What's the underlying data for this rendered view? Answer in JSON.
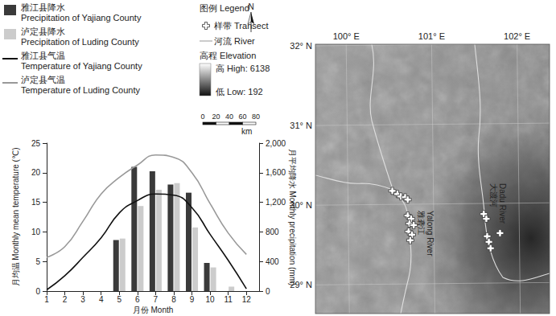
{
  "chart_data": {
    "type": "bar",
    "x_label": "月份 Month",
    "y_label": "月均温 Monthly mean temperature (℃)",
    "y2_label": "月平均降水 Monthly precipitation (mm)",
    "x": [
      1,
      2,
      3,
      4,
      5,
      6,
      7,
      8,
      9,
      10,
      11,
      12
    ],
    "xlim": [
      1,
      12.7
    ],
    "xticks": [
      1,
      2,
      3,
      4,
      5,
      6,
      7,
      8,
      9,
      10,
      11,
      12
    ],
    "ylim": [
      0,
      25
    ],
    "yticks": [
      0,
      5,
      10,
      15,
      20,
      25
    ],
    "y2lim": [
      0,
      2000
    ],
    "y2ticks": [
      0,
      400,
      800,
      1200,
      1600,
      2000
    ],
    "grid": false,
    "legend": "upper left",
    "series": [
      {
        "name": "雅江县降水 Precipitation of Yajiang County",
        "type": "bar",
        "axis": "y2",
        "color": "#3a3a3a",
        "values": [
          0,
          0,
          0,
          0,
          690,
          1680,
          1620,
          1440,
          1330,
          380,
          0,
          0
        ]
      },
      {
        "name": "泸定县降水 Precipitation of Luding County",
        "type": "bar",
        "axis": "y2",
        "color": "#cccccc",
        "values": [
          0,
          0,
          0,
          0,
          710,
          1150,
          1370,
          1460,
          860,
          320,
          60,
          0
        ]
      },
      {
        "name": "雅江县气温 Temperature of Yajiang County",
        "type": "line",
        "color": "#111111",
        "values": [
          0.2,
          2.6,
          5.7,
          9,
          13.2,
          15.3,
          16.4,
          16.2,
          14.1,
          9.6,
          5.2,
          0.4
        ]
      },
      {
        "name": "泸定县气温 Temperature of Luding County",
        "type": "line",
        "color": "#999999",
        "values": [
          5.7,
          7.5,
          11.8,
          16.4,
          19.2,
          21.3,
          23,
          22.6,
          20,
          14.8,
          9.8,
          6.2
        ]
      }
    ]
  },
  "map_legend": {
    "title": "图例 Legend",
    "transect": "样带 Transect",
    "river": "河流 River",
    "elevation": "高程 Elevation",
    "high": "高 High: 6138",
    "low": "低 Low: 192",
    "scale_ticks": [
      0,
      20,
      40,
      60,
      80
    ],
    "scale_unit": "km",
    "north": "N"
  },
  "map": {
    "lon_range": [
      99.64,
      102.38
    ],
    "lat_range": [
      28.64,
      32.02
    ],
    "lon_ticks": [
      {
        "value": 100,
        "label": "100° E"
      },
      {
        "value": 101,
        "label": "101° E"
      },
      {
        "value": 102,
        "label": "102° E"
      }
    ],
    "lat_ticks": [
      {
        "value": 29,
        "label": "29° N"
      },
      {
        "value": 30,
        "label": "30° N"
      },
      {
        "value": 31,
        "label": "31° N"
      },
      {
        "value": 32,
        "label": "32° N"
      }
    ],
    "rivers": [
      {
        "label_zh": "雅砻江",
        "label_en": "Yalong River"
      },
      {
        "label_zh": "大渡河",
        "label_en": "Dadu River"
      }
    ],
    "transects": [
      [
        100.54,
        30.18
      ],
      [
        100.6,
        30.14
      ],
      [
        100.64,
        30.11
      ],
      [
        100.69,
        30.1
      ],
      [
        100.72,
        30.07
      ],
      [
        100.72,
        29.87
      ],
      [
        100.76,
        29.83
      ],
      [
        100.74,
        29.77
      ],
      [
        100.79,
        29.75
      ],
      [
        100.73,
        29.67
      ],
      [
        100.77,
        29.63
      ],
      [
        100.75,
        29.56
      ],
      [
        101.61,
        29.89
      ],
      [
        101.64,
        29.83
      ],
      [
        101.65,
        29.61
      ],
      [
        101.8,
        29.65
      ],
      [
        101.67,
        29.54
      ],
      [
        101.69,
        29.46
      ]
    ]
  }
}
